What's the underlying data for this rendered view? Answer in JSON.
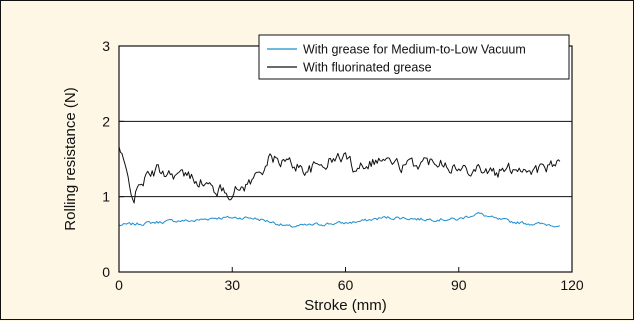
{
  "chart_data": {
    "type": "line",
    "xlabel": "Stroke (mm)",
    "ylabel": "Rolling resistance (N)",
    "xlim": [
      0,
      120
    ],
    "ylim": [
      0,
      3
    ],
    "xticks": [
      0,
      30,
      60,
      90,
      120
    ],
    "yticks": [
      0,
      1,
      2,
      3
    ],
    "gridlines_y": [
      1,
      2
    ],
    "legend_position": "top-right",
    "series": [
      {
        "name": "With grease for Medium-to-Low Vacuum",
        "color": "#1f8fd0",
        "x": [
          0,
          5,
          10,
          15,
          20,
          25,
          30,
          35,
          40,
          45,
          50,
          55,
          60,
          65,
          70,
          75,
          80,
          85,
          90,
          95,
          100,
          105,
          110,
          117
        ],
        "values": [
          0.62,
          0.64,
          0.66,
          0.68,
          0.68,
          0.72,
          0.72,
          0.72,
          0.67,
          0.6,
          0.62,
          0.64,
          0.65,
          0.68,
          0.72,
          0.72,
          0.7,
          0.7,
          0.7,
          0.78,
          0.7,
          0.66,
          0.64,
          0.62
        ]
      },
      {
        "name": "With fluorinated grease",
        "color": "#111111",
        "x": [
          0,
          2,
          4,
          6,
          10,
          15,
          20,
          25,
          30,
          35,
          40,
          45,
          50,
          55,
          60,
          62,
          65,
          70,
          75,
          80,
          85,
          90,
          95,
          100,
          105,
          110,
          115,
          117
        ],
        "values": [
          1.65,
          1.3,
          0.98,
          1.2,
          1.35,
          1.3,
          1.25,
          1.1,
          1.05,
          1.2,
          1.5,
          1.45,
          1.35,
          1.45,
          1.55,
          1.4,
          1.45,
          1.5,
          1.4,
          1.45,
          1.5,
          1.35,
          1.4,
          1.3,
          1.4,
          1.35,
          1.4,
          1.42
        ]
      }
    ]
  }
}
